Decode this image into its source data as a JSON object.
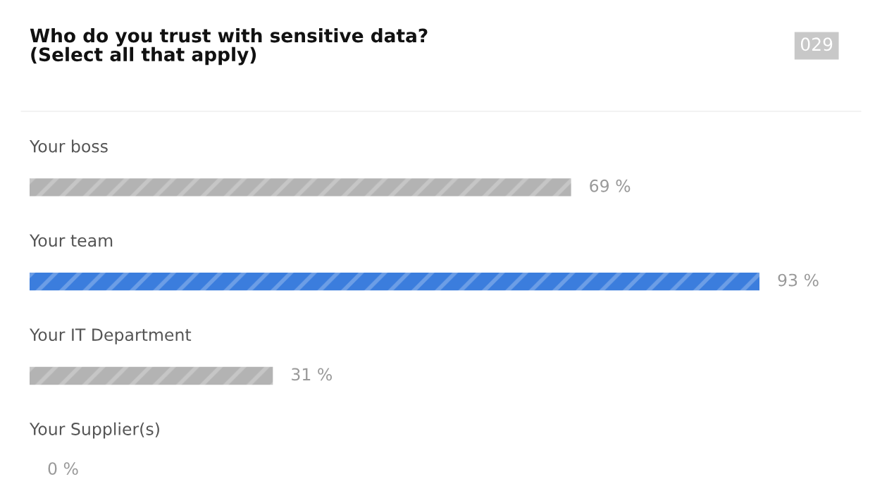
{
  "chart_data": {
    "type": "bar",
    "orientation": "horizontal",
    "title": "Who do you trust with sensitive data?\n(Select all that apply)",
    "categories": [
      "Your boss",
      "Your team",
      "Your IT Department",
      "Your Supplier(s)"
    ],
    "values": [
      69,
      93,
      31,
      0
    ],
    "colors": [
      "#b3b3b3",
      "#3b7ddd",
      "#b3b3b3",
      "#b3b3b3"
    ],
    "value_labels": [
      "69 %",
      "93 %",
      "31 %",
      "0 %"
    ],
    "annotations": [
      "029"
    ]
  }
}
